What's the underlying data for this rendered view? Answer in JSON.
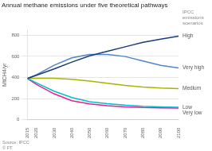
{
  "chart_data": {
    "type": "line",
    "title": "Annual methane emissions under five theoretical pathways",
    "y_label": "MtCH4/yr",
    "annotations": [
      "IPCC\nemissions\nscenarios",
      "Source: IPCC\n© FT"
    ],
    "x": [
      2015,
      2020,
      2030,
      2040,
      2050,
      2060,
      2070,
      2080,
      2090,
      2100
    ],
    "series": [
      {
        "name": "High",
        "color": "#1a3a7a",
        "values": [
          390,
          420,
          480,
          545,
          605,
          648,
          690,
          732,
          762,
          790
        ]
      },
      {
        "name": "Very high",
        "color": "#4f86c6",
        "values": [
          390,
          425,
          515,
          585,
          618,
          618,
          598,
          555,
          515,
          490
        ]
      },
      {
        "name": "Medium",
        "color": "#a8b400",
        "values": [
          390,
          392,
          393,
          382,
          365,
          345,
          325,
          310,
          300,
          295
        ]
      },
      {
        "name": "Low",
        "color": "#00bcd4",
        "values": [
          390,
          350,
          270,
          210,
          170,
          152,
          138,
          128,
          122,
          118
        ]
      },
      {
        "name": "Very low",
        "color": "#e91e8c",
        "values": [
          390,
          335,
          245,
          180,
          150,
          132,
          122,
          115,
          112,
          110
        ]
      }
    ],
    "xlim": [
      2015,
      2100
    ],
    "ylim": [
      0,
      850
    ],
    "xticks": [
      2015,
      2020,
      2030,
      2040,
      2050,
      2060,
      2070,
      2080,
      2090,
      2100
    ],
    "yticks": [
      0,
      200,
      400,
      600,
      800
    ],
    "grid": "y"
  }
}
